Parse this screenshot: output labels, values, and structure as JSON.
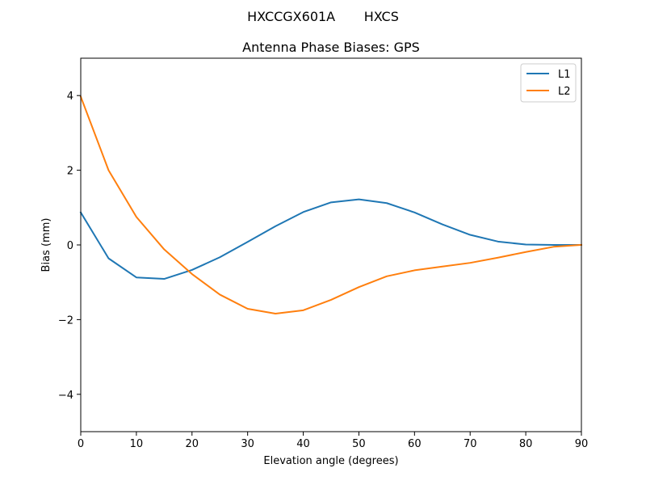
{
  "figure": {
    "suptitle": "HXCCGX601A       HXCS"
  },
  "chart_data": {
    "type": "line",
    "title": "Antenna Phase Biases: GPS",
    "xlabel": "Elevation angle (degrees)",
    "ylabel": "Bias (mm)",
    "xlim": [
      0,
      90
    ],
    "ylim": [
      -5,
      5
    ],
    "xticks": [
      0,
      10,
      20,
      30,
      40,
      50,
      60,
      70,
      80,
      90
    ],
    "yticks": [
      -4,
      -2,
      0,
      2,
      4
    ],
    "ytick_labels": [
      "−4",
      "−2",
      "0",
      "2",
      "4"
    ],
    "grid": false,
    "legend": "top-right",
    "x": [
      0,
      5,
      10,
      15,
      20,
      25,
      30,
      35,
      40,
      45,
      50,
      55,
      60,
      65,
      70,
      75,
      80,
      85,
      90
    ],
    "series": [
      {
        "name": "L1",
        "color": "#1f77b4",
        "values": [
          0.87,
          -0.36,
          -0.87,
          -0.91,
          -0.67,
          -0.33,
          0.08,
          0.5,
          0.88,
          1.14,
          1.22,
          1.12,
          0.87,
          0.55,
          0.27,
          0.09,
          0.01,
          0.0,
          0.0
        ]
      },
      {
        "name": "L2",
        "color": "#ff7f0e",
        "values": [
          3.97,
          2.0,
          0.75,
          -0.12,
          -0.78,
          -1.33,
          -1.71,
          -1.84,
          -1.75,
          -1.47,
          -1.13,
          -0.84,
          -0.68,
          -0.58,
          -0.48,
          -0.34,
          -0.19,
          -0.05,
          0.0
        ]
      }
    ]
  }
}
